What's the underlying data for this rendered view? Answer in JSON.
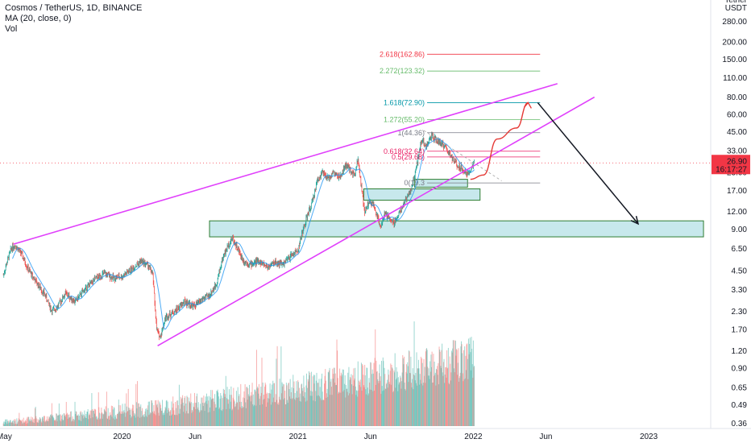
{
  "legend": {
    "symbol_line": "Cosmos / TetherUS, 1D, BINANCE",
    "ma_line": "MA (20, close, 0)",
    "vol_line": "Vol"
  },
  "price_badge": {
    "price": "26.90",
    "countdown": "16:17:27",
    "color": "#f23645"
  },
  "currency": {
    "line1": "Tether",
    "line2": "USDT"
  },
  "chart_data": {
    "type": "candlestick",
    "symbol": "Cosmos / TetherUS",
    "interval": "1D",
    "exchange": "BINANCE",
    "y_scale": "log",
    "ylim": [
      0.33,
      400
    ],
    "xlim": [
      "2019-04-22",
      "2023-05-10"
    ],
    "last_price": 26.9,
    "y_ticks": [
      "280.00",
      "200.00",
      "150.00",
      "110.00",
      "80.00",
      "60.00",
      "45.00",
      "33.00",
      "23.00",
      "17.00",
      "12.00",
      "9.00",
      "6.50",
      "4.50",
      "3.30",
      "2.30",
      "1.70",
      "1.20",
      "0.90",
      "0.65",
      "0.49",
      "0.36"
    ],
    "x_ticks": [
      {
        "label": "May",
        "date": "2019-05-01"
      },
      {
        "label": "2020",
        "date": "2020-01-01"
      },
      {
        "label": "Jun",
        "date": "2020-06-01"
      },
      {
        "label": "2021",
        "date": "2021-01-01"
      },
      {
        "label": "Jun",
        "date": "2021-06-01"
      },
      {
        "label": "2022",
        "date": "2022-01-01"
      },
      {
        "label": "Jun",
        "date": "2022-06-01"
      },
      {
        "label": "2023",
        "date": "2023-01-01"
      }
    ],
    "price_path": [
      [
        "2019-04-29",
        4.2
      ],
      [
        "2019-05-08",
        5.4
      ],
      [
        "2019-05-16",
        6.6
      ],
      [
        "2019-05-24",
        6.9
      ],
      [
        "2019-06-05",
        6.0
      ],
      [
        "2019-06-20",
        4.6
      ],
      [
        "2019-07-05",
        3.8
      ],
      [
        "2019-07-25",
        3.0
      ],
      [
        "2019-08-08",
        2.3
      ],
      [
        "2019-08-20",
        2.5
      ],
      [
        "2019-09-05",
        3.1
      ],
      [
        "2019-09-25",
        2.7
      ],
      [
        "2019-10-15",
        3.3
      ],
      [
        "2019-11-05",
        3.9
      ],
      [
        "2019-11-25",
        4.3
      ],
      [
        "2019-12-15",
        4.0
      ],
      [
        "2020-01-01",
        4.1
      ],
      [
        "2020-01-20",
        4.6
      ],
      [
        "2020-02-10",
        5.3
      ],
      [
        "2020-02-25",
        4.9
      ],
      [
        "2020-03-05",
        4.2
      ],
      [
        "2020-03-13",
        1.7
      ],
      [
        "2020-03-20",
        1.5
      ],
      [
        "2020-04-01",
        2.1
      ],
      [
        "2020-04-20",
        2.3
      ],
      [
        "2020-05-10",
        2.7
      ],
      [
        "2020-05-30",
        2.5
      ],
      [
        "2020-06-15",
        2.8
      ],
      [
        "2020-07-01",
        3.0
      ],
      [
        "2020-07-15",
        3.6
      ],
      [
        "2020-07-28",
        5.5
      ],
      [
        "2020-08-10",
        7.0
      ],
      [
        "2020-08-18",
        7.8
      ],
      [
        "2020-08-30",
        6.3
      ],
      [
        "2020-09-10",
        5.3
      ],
      [
        "2020-09-25",
        5.0
      ],
      [
        "2020-10-10",
        5.3
      ],
      [
        "2020-10-30",
        4.8
      ],
      [
        "2020-11-15",
        5.2
      ],
      [
        "2020-12-01",
        5.0
      ],
      [
        "2020-12-20",
        5.9
      ],
      [
        "2021-01-01",
        6.3
      ],
      [
        "2021-01-10",
        8.5
      ],
      [
        "2021-01-20",
        11.0
      ],
      [
        "2021-02-01",
        14.5
      ],
      [
        "2021-02-10",
        20.0
      ],
      [
        "2021-02-20",
        23.0
      ],
      [
        "2021-03-05",
        20.5
      ],
      [
        "2021-03-15",
        23.0
      ],
      [
        "2021-03-30",
        21.0
      ],
      [
        "2021-04-10",
        26.0
      ],
      [
        "2021-04-20",
        24.0
      ],
      [
        "2021-04-28",
        22.0
      ],
      [
        "2021-05-06",
        29.0
      ],
      [
        "2021-05-13",
        18.0
      ],
      [
        "2021-05-20",
        11.5
      ],
      [
        "2021-05-25",
        13.5
      ],
      [
        "2021-06-05",
        14.0
      ],
      [
        "2021-06-22",
        9.5
      ],
      [
        "2021-07-01",
        11.5
      ],
      [
        "2021-07-20",
        10.0
      ],
      [
        "2021-08-01",
        12.0
      ],
      [
        "2021-08-15",
        15.0
      ],
      [
        "2021-08-25",
        17.5
      ],
      [
        "2021-09-05",
        25.0
      ],
      [
        "2021-09-15",
        40.0
      ],
      [
        "2021-09-25",
        35.0
      ],
      [
        "2021-10-05",
        42.0
      ],
      [
        "2021-10-20",
        38.0
      ],
      [
        "2021-11-01",
        36.0
      ],
      [
        "2021-11-15",
        30.0
      ],
      [
        "2021-11-28",
        26.0
      ],
      [
        "2021-12-08",
        25.0
      ],
      [
        "2021-12-18",
        22.0
      ],
      [
        "2021-12-28",
        24.5
      ],
      [
        "2022-01-03",
        26.9
      ]
    ],
    "volume_note": "Volume histogram shown at bottom, rising toward 2021-2022",
    "fib_levels": [
      {
        "label": "2.618(162.86)",
        "value": 162.86,
        "color": "#f23645"
      },
      {
        "label": "2.272(123.32)",
        "value": 123.32,
        "color": "#66bb6a"
      },
      {
        "label": "1.618(72.90)",
        "value": 72.9,
        "color": "#0097a7"
      },
      {
        "label": "1.272(55.20)",
        "value": 55.2,
        "color": "#66bb6a"
      },
      {
        "label": "1(44.36)",
        "value": 44.36,
        "color": "#787b86"
      },
      {
        "label": "0.618(32.64)",
        "value": 32.64,
        "color": "#e91e63"
      },
      {
        "label": "0.5(29.68)",
        "value": 29.68,
        "color": "#e91e63"
      },
      {
        "label": "0(19.3",
        "value": 19.3,
        "color": "#787b86"
      }
    ],
    "annotations": {
      "wedge_upper": [
        [
          "2019-05-20",
          7.0
        ],
        [
          "2022-06-25",
          100.0
        ]
      ],
      "wedge_lower": [
        [
          "2020-03-15",
          1.3
        ],
        [
          "2022-09-10",
          80.0
        ]
      ],
      "down_arrow": [
        [
          "2022-05-15",
          73.0
        ],
        [
          "2022-12-10",
          9.8
        ]
      ],
      "projection_curve": [
        [
          "2021-12-26",
          20.5
        ],
        [
          "2022-01-22",
          22.0
        ],
        [
          "2022-02-20",
          40.0
        ],
        [
          "2022-04-01",
          48.0
        ],
        [
          "2022-04-25",
          73.0
        ]
      ],
      "zones": [
        {
          "from": "2020-07-01",
          "to": "2023-04-25",
          "low": 7.9,
          "high": 10.3,
          "color": "#0097a7"
        },
        {
          "from": "2021-05-18",
          "to": "2022-01-15",
          "low": 14.5,
          "high": 17.5,
          "color": "#0097a7"
        },
        {
          "from": "2021-09-01",
          "to": "2021-12-20",
          "low": 18.0,
          "high": 20.5,
          "color": "#0097a7"
        }
      ],
      "dashed_channel": [
        [
          "2021-09-20",
          46.0
        ],
        [
          "2022-03-01",
          20.0
        ]
      ]
    }
  }
}
